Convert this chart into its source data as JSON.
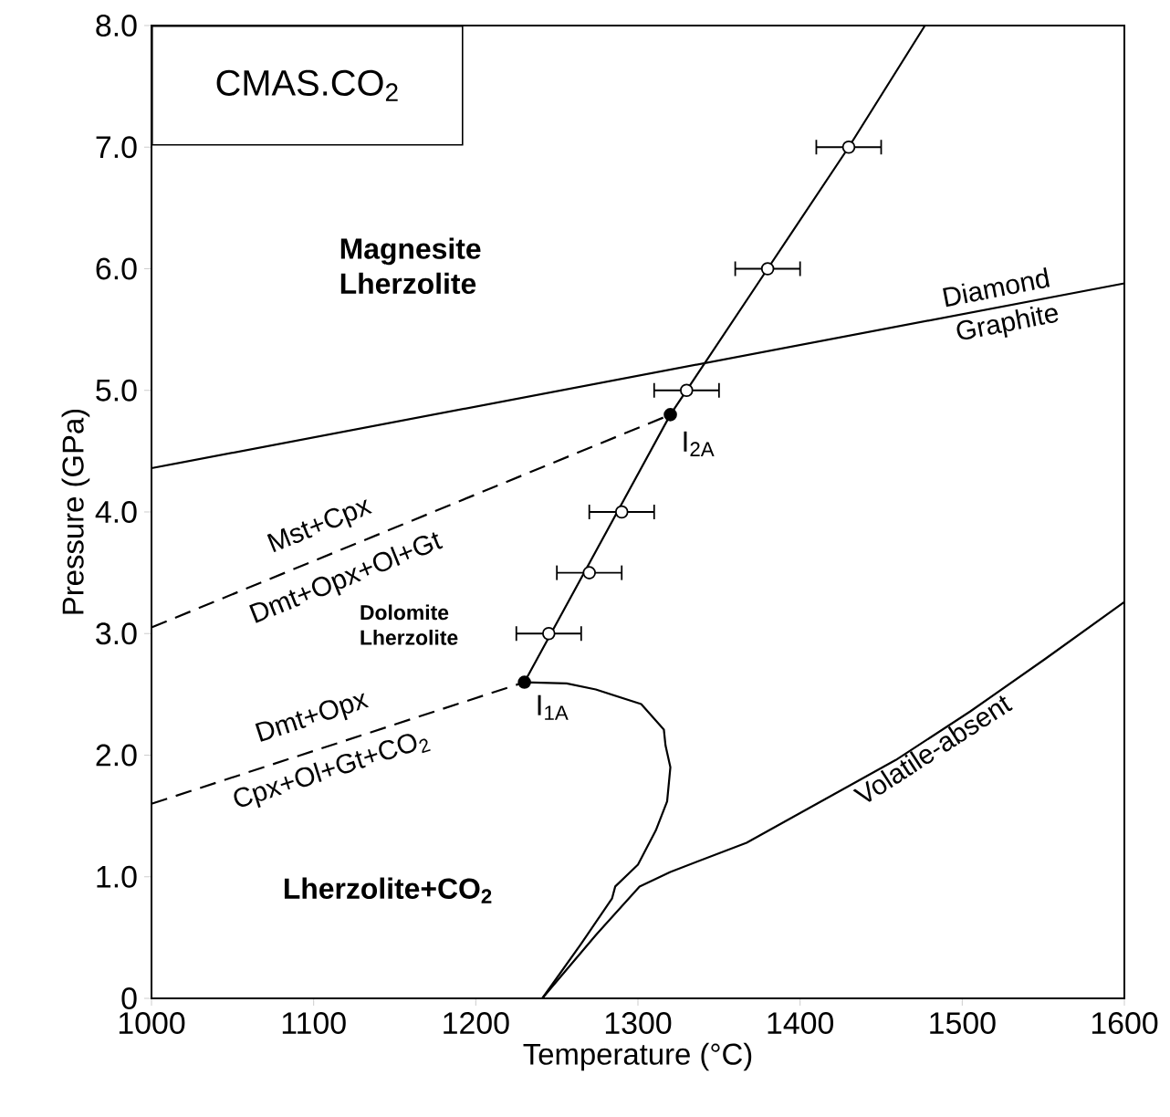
{
  "chart_data": {
    "type": "line",
    "title": "CMAS.CO$_{2}$",
    "xlabel": "Temperature (°C)",
    "ylabel": "Pressure (GPa)",
    "xlim": [
      1000,
      1600
    ],
    "ylim": [
      0,
      8
    ],
    "xticks": [
      1000,
      1100,
      1200,
      1300,
      1400,
      1500,
      1600
    ],
    "yticks": [
      0,
      {
        "value": 1,
        "label": "1.0"
      },
      {
        "value": 2,
        "label": "2.0"
      },
      {
        "value": 3,
        "label": "3.0"
      },
      {
        "value": 4,
        "label": "4.0"
      },
      {
        "value": 5,
        "label": "5.0"
      },
      {
        "value": 6,
        "label": "6.0"
      },
      {
        "value": 7,
        "label": "7.0"
      },
      {
        "value": 8,
        "label": "8.0"
      }
    ],
    "series": [
      {
        "line_style": "solid",
        "marker": "none",
        "color": "#000000",
        "x": [
          1230,
          1320,
          1380,
          1430,
          1477
        ],
        "values": [
          2.6,
          4.8,
          6.0,
          7.0,
          8.0
        ]
      },
      {
        "line_style": "solid",
        "marker": "none",
        "color": "#000000",
        "x": [
          1000,
          1600
        ],
        "values": [
          4.36,
          5.88
        ]
      },
      {
        "line_style": "dashed",
        "marker": "none",
        "color": "#000000",
        "x": [
          1000,
          1320
        ],
        "values": [
          3.05,
          4.8
        ]
      },
      {
        "line_style": "dashed",
        "marker": "none",
        "color": "#000000",
        "x": [
          1000,
          1230
        ],
        "values": [
          1.6,
          2.6
        ]
      },
      {
        "line_style": "solid",
        "marker": "none",
        "color": "#000000",
        "x": [
          1230,
          1256,
          1274,
          1302,
          1316,
          1317,
          1320,
          1318,
          1311,
          1300,
          1286,
          1284,
          1265,
          1241
        ],
        "values": [
          2.6,
          2.59,
          2.54,
          2.42,
          2.21,
          2.08,
          1.9,
          1.62,
          1.38,
          1.1,
          0.92,
          0.82,
          0.45,
          0
        ]
      },
      {
        "line_style": "solid",
        "marker": "none",
        "color": "#000000",
        "x": [
          1241,
          1274,
          1301,
          1320,
          1367,
          1413,
          1459,
          1505,
          1551,
          1600
        ],
        "values": [
          0,
          0.52,
          0.92,
          1.04,
          1.28,
          1.62,
          1.96,
          2.36,
          2.79,
          3.26
        ]
      },
      {
        "type": "scatter",
        "marker": "circle",
        "color": "#ffffff",
        "x": [
          1245,
          1270,
          1290,
          1330,
          1380,
          1430
        ],
        "values": [
          3.0,
          3.5,
          4.0,
          5.0,
          6.0,
          7.0
        ],
        "xerrors": [
          20,
          20,
          20,
          20,
          20,
          20
        ]
      },
      {
        "type": "scatter",
        "marker": "circle",
        "color": "#000000",
        "x": [
          1230,
          1320
        ],
        "values": [
          2.6,
          4.8
        ]
      }
    ],
    "annotations": [
      "Magnesite Lherzolite",
      "Diamond",
      "Graphite",
      "Mst+Cpx",
      "Dmt+Opx+Ol+Gt",
      "Dolomite Lherzolite",
      "Dmt+Opx",
      "Cpx+Ol+Gt+CO$_{2}$",
      "Lherzolite+CO$_{2}$",
      "Volatile-absent",
      "I$_{2A}$",
      "I$_{1A}$"
    ]
  }
}
